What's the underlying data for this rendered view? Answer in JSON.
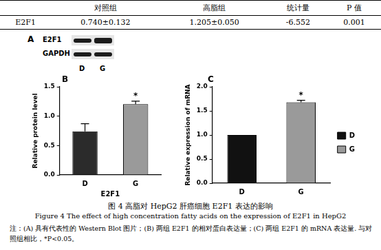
{
  "table": {
    "header": [
      "",
      "对照组",
      "高脂组",
      "统计量",
      "P 值"
    ],
    "rows": [
      [
        "E2F1",
        "0.740±0.132",
        "1.205±0.050",
        "-6.552",
        "0.001"
      ]
    ]
  },
  "panel_a": {
    "label": "A",
    "bands": [
      "E2F1",
      "GAPDH"
    ],
    "lanes": [
      "D",
      "G"
    ]
  },
  "chart_data": [
    {
      "type": "bar",
      "panel": "B",
      "y_label": "Relative protein level",
      "x_label": "E2F1",
      "categories": [
        "D",
        "G"
      ],
      "values": [
        0.74,
        1.205
      ],
      "error": [
        0.132,
        0.05
      ],
      "colors": [
        "#2b2b2b",
        "#9a9a9a"
      ],
      "annotations": [
        null,
        "*"
      ],
      "ylim": [
        0,
        1.5
      ],
      "yticks": [
        {
          "value": 0,
          "label": "0.0"
        },
        0.5,
        {
          "value": 1,
          "label": "1.0"
        },
        1.5
      ],
      "grid": false
    },
    {
      "type": "bar",
      "panel": "C",
      "y_label": "Relative expression of mRNA",
      "categories": [
        "D",
        "G"
      ],
      "values": [
        1.0,
        1.68
      ],
      "error": [
        0,
        0.04
      ],
      "colors": [
        "#111111",
        "#9a9a9a"
      ],
      "annotations": [
        null,
        "*"
      ],
      "ylim": [
        0,
        2.0
      ],
      "yticks": [
        {
          "value": 0,
          "label": "0.0"
        },
        0.5,
        {
          "value": 1,
          "label": "1.0"
        },
        1.5,
        {
          "value": 2,
          "label": "2.0"
        }
      ],
      "grid": false,
      "legend": "right"
    }
  ],
  "caption": {
    "title": "图 4 高脂对 HepG2 肝癌细胞 E2F1 表达的影响",
    "title_en": "Figure 4 The effect of high concentration fatty acids on the expression of E2F1 in HepG2",
    "note": "注：(A) 具有代表性的 Western Blot 图片；(B) 两组 E2F1 的相对蛋白表达量；(C) 两组 E2F1 的 mRNA 表达量. 与对照组相比，*P<0.05。"
  }
}
